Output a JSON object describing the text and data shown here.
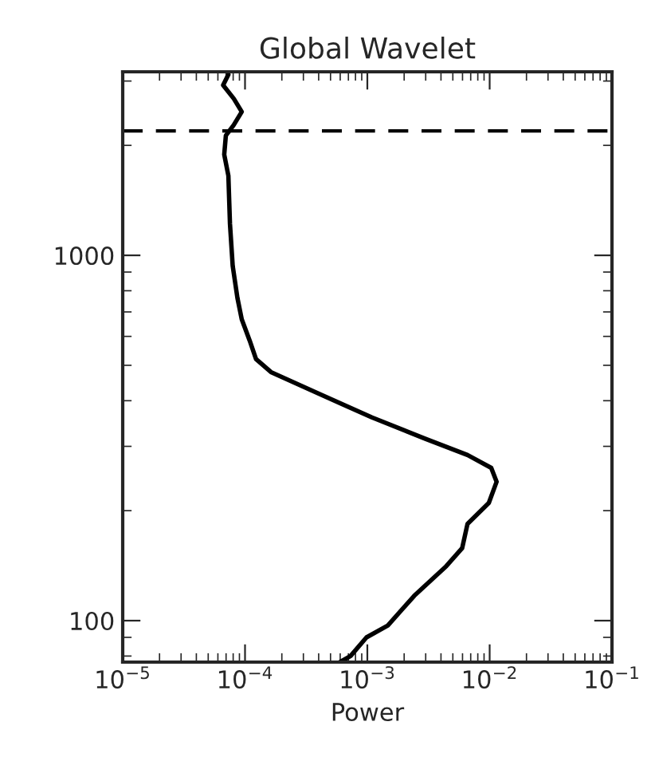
{
  "chart_data": {
    "type": "line",
    "title": "Global Wavelet",
    "xlabel": "Power",
    "log": "xy",
    "xlim": [
      1e-05,
      0.1
    ],
    "ylim": [
      77,
      3180
    ],
    "xticks": [
      {
        "value": 1e-05,
        "label": "10$^{−5}$"
      },
      {
        "value": 0.0001,
        "label": "10$^{−4}$"
      },
      {
        "value": 0.001,
        "label": "10$^{−3}$"
      },
      {
        "value": 0.01,
        "label": "10$^{−2}$"
      },
      {
        "value": 0.1,
        "label": "10$^{−1}$"
      }
    ],
    "yticks": [
      100,
      1000
    ],
    "ref_lines": [
      {
        "axis": "y",
        "value": 2190,
        "color": "#000000",
        "line_style": "dashed"
      }
    ],
    "series": [
      {
        "color": "#000000",
        "x": [
          7.31e-05,
          6.62e-05,
          8.09e-05,
          9.4e-05,
          8.09e-05,
          6.97e-05,
          6.76e-05,
          7.31e-05,
          7.53e-05,
          7.93e-05,
          8.67e-05,
          9.4e-05,
          0.000109,
          0.000123,
          0.000163,
          0.000401,
          0.00109,
          0.00296,
          0.00659,
          0.0103,
          0.0114,
          0.00984,
          0.00659,
          0.00596,
          0.00442,
          0.00242,
          0.00147,
          0.000984,
          0.000729,
          0.000597
        ],
        "values": [
          3126,
          2924,
          2685,
          2472,
          2275,
          2128,
          1888,
          1652,
          1222,
          935,
          764,
          668,
          585,
          520,
          479,
          418,
          360,
          315,
          284,
          262,
          240,
          210,
          184,
          158,
          141,
          117,
          97,
          90,
          80,
          77
        ]
      }
    ],
    "grid": false,
    "legend": false
  }
}
